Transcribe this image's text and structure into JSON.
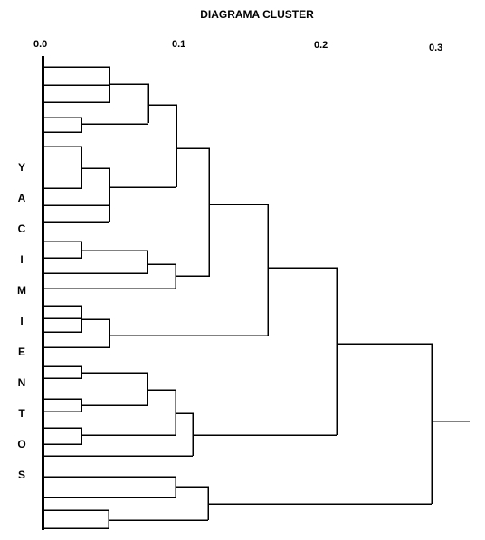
{
  "title": "DIAGRAMA CLUSTER",
  "axis": {
    "ticks": [
      "0.0",
      "0.1",
      "0.2",
      "0.3"
    ]
  },
  "side_label": [
    "Y",
    "A",
    "C",
    "I",
    "M",
    "I",
    "E",
    "N",
    "T",
    "O",
    "S"
  ],
  "line_color": "#000000"
}
